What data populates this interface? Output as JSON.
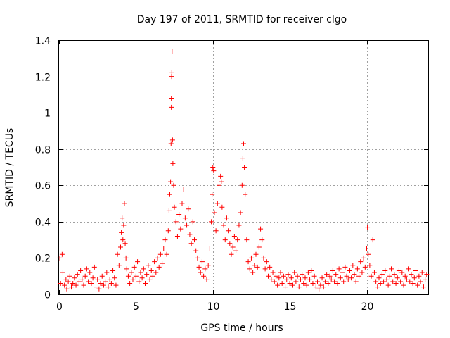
{
  "chart_data": {
    "type": "scatter",
    "title": "Day 197 of 2011, SRMTID for receiver clgo",
    "xlabel": "GPS time / hours",
    "ylabel": "SRMTID / TECUs",
    "xlim": [
      0,
      24
    ],
    "ylim": [
      0,
      1.4
    ],
    "x_ticks": [
      0,
      5,
      10,
      15,
      20
    ],
    "x_tick_labels": [
      "0",
      "5",
      "10",
      "15",
      "20"
    ],
    "y_ticks": [
      0,
      0.2,
      0.4,
      0.6,
      0.8,
      1,
      1.2,
      1.4
    ],
    "y_tick_labels": [
      "0",
      "0.2",
      "0.4",
      "0.6",
      "0.8",
      "1",
      "1.2",
      "1.4"
    ],
    "grid": true,
    "marker": "+",
    "series": [
      {
        "name": "SRMTID",
        "color": "#ff0000",
        "points": [
          [
            0.05,
            0.2
          ],
          [
            0.1,
            0.06
          ],
          [
            0.2,
            0.22
          ],
          [
            0.25,
            0.12
          ],
          [
            0.35,
            0.05
          ],
          [
            0.45,
            0.08
          ],
          [
            0.5,
            0.03
          ],
          [
            0.6,
            0.07
          ],
          [
            0.7,
            0.1
          ],
          [
            0.8,
            0.04
          ],
          [
            0.9,
            0.06
          ],
          [
            1.0,
            0.09
          ],
          [
            1.1,
            0.05
          ],
          [
            1.2,
            0.11
          ],
          [
            1.3,
            0.07
          ],
          [
            1.4,
            0.13
          ],
          [
            1.5,
            0.08
          ],
          [
            1.6,
            0.05
          ],
          [
            1.7,
            0.1
          ],
          [
            1.8,
            0.14
          ],
          [
            1.9,
            0.07
          ],
          [
            2.0,
            0.12
          ],
          [
            2.1,
            0.06
          ],
          [
            2.2,
            0.09
          ],
          [
            2.3,
            0.15
          ],
          [
            2.4,
            0.04
          ],
          [
            2.5,
            0.08
          ],
          [
            2.6,
            0.03
          ],
          [
            2.7,
            0.06
          ],
          [
            2.8,
            0.1
          ],
          [
            2.9,
            0.05
          ],
          [
            3.0,
            0.07
          ],
          [
            3.1,
            0.12
          ],
          [
            3.2,
            0.04
          ],
          [
            3.3,
            0.08
          ],
          [
            3.4,
            0.06
          ],
          [
            3.5,
            0.13
          ],
          [
            3.6,
            0.09
          ],
          [
            3.7,
            0.05
          ],
          [
            3.8,
            0.22
          ],
          [
            3.9,
            0.16
          ],
          [
            4.0,
            0.26
          ],
          [
            4.05,
            0.34
          ],
          [
            4.1,
            0.42
          ],
          [
            4.15,
            0.3
          ],
          [
            4.2,
            0.38
          ],
          [
            4.25,
            0.5
          ],
          [
            4.3,
            0.28
          ],
          [
            4.35,
            0.2
          ],
          [
            4.4,
            0.14
          ],
          [
            4.5,
            0.1
          ],
          [
            4.6,
            0.06
          ],
          [
            4.7,
            0.12
          ],
          [
            4.8,
            0.08
          ],
          [
            4.9,
            0.15
          ],
          [
            5.0,
            0.1
          ],
          [
            5.1,
            0.18
          ],
          [
            5.2,
            0.07
          ],
          [
            5.3,
            0.12
          ],
          [
            5.4,
            0.09
          ],
          [
            5.5,
            0.14
          ],
          [
            5.6,
            0.06
          ],
          [
            5.7,
            0.11
          ],
          [
            5.8,
            0.16
          ],
          [
            5.9,
            0.08
          ],
          [
            6.0,
            0.13
          ],
          [
            6.1,
            0.1
          ],
          [
            6.2,
            0.18
          ],
          [
            6.3,
            0.12
          ],
          [
            6.4,
            0.2
          ],
          [
            6.5,
            0.15
          ],
          [
            6.6,
            0.22
          ],
          [
            6.7,
            0.17
          ],
          [
            6.8,
            0.25
          ],
          [
            6.9,
            0.3
          ],
          [
            7.0,
            0.22
          ],
          [
            7.1,
            0.35
          ],
          [
            7.15,
            0.46
          ],
          [
            7.2,
            0.55
          ],
          [
            7.25,
            0.62
          ],
          [
            7.28,
            0.83
          ],
          [
            7.3,
            1.03
          ],
          [
            7.3,
            1.08
          ],
          [
            7.32,
            1.2
          ],
          [
            7.33,
            1.22
          ],
          [
            7.35,
            1.34
          ],
          [
            7.38,
            0.85
          ],
          [
            7.4,
            0.72
          ],
          [
            7.45,
            0.6
          ],
          [
            7.5,
            0.48
          ],
          [
            7.6,
            0.4
          ],
          [
            7.7,
            0.32
          ],
          [
            7.8,
            0.44
          ],
          [
            7.9,
            0.36
          ],
          [
            8.0,
            0.5
          ],
          [
            8.1,
            0.58
          ],
          [
            8.2,
            0.42
          ],
          [
            8.3,
            0.38
          ],
          [
            8.4,
            0.47
          ],
          [
            8.5,
            0.33
          ],
          [
            8.6,
            0.28
          ],
          [
            8.7,
            0.4
          ],
          [
            8.8,
            0.3
          ],
          [
            8.9,
            0.24
          ],
          [
            9.0,
            0.2
          ],
          [
            9.1,
            0.15
          ],
          [
            9.2,
            0.12
          ],
          [
            9.3,
            0.18
          ],
          [
            9.4,
            0.1
          ],
          [
            9.5,
            0.14
          ],
          [
            9.6,
            0.08
          ],
          [
            9.7,
            0.16
          ],
          [
            9.8,
            0.25
          ],
          [
            9.9,
            0.4
          ],
          [
            9.95,
            0.55
          ],
          [
            10.0,
            0.7
          ],
          [
            10.05,
            0.68
          ],
          [
            10.1,
            0.45
          ],
          [
            10.2,
            0.35
          ],
          [
            10.3,
            0.5
          ],
          [
            10.4,
            0.6
          ],
          [
            10.5,
            0.65
          ],
          [
            10.55,
            0.62
          ],
          [
            10.6,
            0.48
          ],
          [
            10.7,
            0.38
          ],
          [
            10.8,
            0.3
          ],
          [
            10.9,
            0.42
          ],
          [
            11.0,
            0.35
          ],
          [
            11.1,
            0.28
          ],
          [
            11.2,
            0.22
          ],
          [
            11.3,
            0.26
          ],
          [
            11.4,
            0.32
          ],
          [
            11.5,
            0.24
          ],
          [
            11.6,
            0.3
          ],
          [
            11.7,
            0.38
          ],
          [
            11.8,
            0.45
          ],
          [
            11.9,
            0.6
          ],
          [
            11.95,
            0.75
          ],
          [
            12.0,
            0.83
          ],
          [
            12.05,
            0.7
          ],
          [
            12.1,
            0.55
          ],
          [
            12.2,
            0.3
          ],
          [
            12.3,
            0.18
          ],
          [
            12.4,
            0.14
          ],
          [
            12.5,
            0.2
          ],
          [
            12.6,
            0.12
          ],
          [
            12.7,
            0.16
          ],
          [
            12.8,
            0.22
          ],
          [
            12.9,
            0.15
          ],
          [
            13.0,
            0.26
          ],
          [
            13.1,
            0.36
          ],
          [
            13.2,
            0.3
          ],
          [
            13.3,
            0.2
          ],
          [
            13.4,
            0.14
          ],
          [
            13.5,
            0.18
          ],
          [
            13.6,
            0.1
          ],
          [
            13.7,
            0.15
          ],
          [
            13.8,
            0.08
          ],
          [
            13.9,
            0.12
          ],
          [
            14.0,
            0.07
          ],
          [
            14.1,
            0.1
          ],
          [
            14.2,
            0.05
          ],
          [
            14.3,
            0.09
          ],
          [
            14.4,
            0.12
          ],
          [
            14.5,
            0.06
          ],
          [
            14.6,
            0.1
          ],
          [
            14.7,
            0.04
          ],
          [
            14.8,
            0.08
          ],
          [
            14.9,
            0.11
          ],
          [
            15.0,
            0.06
          ],
          [
            15.1,
            0.09
          ],
          [
            15.2,
            0.05
          ],
          [
            15.3,
            0.12
          ],
          [
            15.4,
            0.07
          ],
          [
            15.5,
            0.1
          ],
          [
            15.6,
            0.04
          ],
          [
            15.7,
            0.08
          ],
          [
            15.8,
            0.11
          ],
          [
            15.9,
            0.06
          ],
          [
            16.0,
            0.09
          ],
          [
            16.1,
            0.05
          ],
          [
            16.2,
            0.12
          ],
          [
            16.3,
            0.08
          ],
          [
            16.4,
            0.13
          ],
          [
            16.5,
            0.06
          ],
          [
            16.6,
            0.1
          ],
          [
            16.7,
            0.04
          ],
          [
            16.8,
            0.07
          ],
          [
            16.9,
            0.03
          ],
          [
            17.0,
            0.05
          ],
          [
            17.1,
            0.09
          ],
          [
            17.2,
            0.04
          ],
          [
            17.3,
            0.07
          ],
          [
            17.4,
            0.11
          ],
          [
            17.5,
            0.06
          ],
          [
            17.6,
            0.1
          ],
          [
            17.7,
            0.08
          ],
          [
            17.8,
            0.13
          ],
          [
            17.9,
            0.07
          ],
          [
            18.0,
            0.11
          ],
          [
            18.1,
            0.06
          ],
          [
            18.2,
            0.14
          ],
          [
            18.3,
            0.09
          ],
          [
            18.4,
            0.12
          ],
          [
            18.5,
            0.07
          ],
          [
            18.6,
            0.15
          ],
          [
            18.7,
            0.1
          ],
          [
            18.8,
            0.08
          ],
          [
            18.9,
            0.13
          ],
          [
            19.0,
            0.09
          ],
          [
            19.1,
            0.16
          ],
          [
            19.2,
            0.11
          ],
          [
            19.3,
            0.07
          ],
          [
            19.4,
            0.14
          ],
          [
            19.5,
            0.1
          ],
          [
            19.6,
            0.18
          ],
          [
            19.7,
            0.12
          ],
          [
            19.8,
            0.2
          ],
          [
            19.9,
            0.15
          ],
          [
            20.0,
            0.25
          ],
          [
            20.05,
            0.37
          ],
          [
            20.1,
            0.22
          ],
          [
            20.2,
            0.16
          ],
          [
            20.3,
            0.1
          ],
          [
            20.4,
            0.3
          ],
          [
            20.5,
            0.12
          ],
          [
            20.6,
            0.07
          ],
          [
            20.7,
            0.04
          ],
          [
            20.8,
            0.09
          ],
          [
            20.9,
            0.06
          ],
          [
            21.0,
            0.11
          ],
          [
            21.1,
            0.07
          ],
          [
            21.2,
            0.13
          ],
          [
            21.3,
            0.08
          ],
          [
            21.4,
            0.05
          ],
          [
            21.5,
            0.1
          ],
          [
            21.6,
            0.14
          ],
          [
            21.7,
            0.07
          ],
          [
            21.8,
            0.11
          ],
          [
            21.9,
            0.06
          ],
          [
            22.0,
            0.09
          ],
          [
            22.1,
            0.13
          ],
          [
            22.2,
            0.07
          ],
          [
            22.3,
            0.12
          ],
          [
            22.4,
            0.05
          ],
          [
            22.5,
            0.1
          ],
          [
            22.6,
            0.08
          ],
          [
            22.7,
            0.14
          ],
          [
            22.8,
            0.07
          ],
          [
            22.9,
            0.11
          ],
          [
            23.0,
            0.06
          ],
          [
            23.1,
            0.09
          ],
          [
            23.2,
            0.13
          ],
          [
            23.3,
            0.05
          ],
          [
            23.4,
            0.1
          ],
          [
            23.5,
            0.07
          ],
          [
            23.6,
            0.12
          ],
          [
            23.7,
            0.04
          ],
          [
            23.8,
            0.08
          ],
          [
            23.9,
            0.11
          ]
        ]
      }
    ]
  }
}
